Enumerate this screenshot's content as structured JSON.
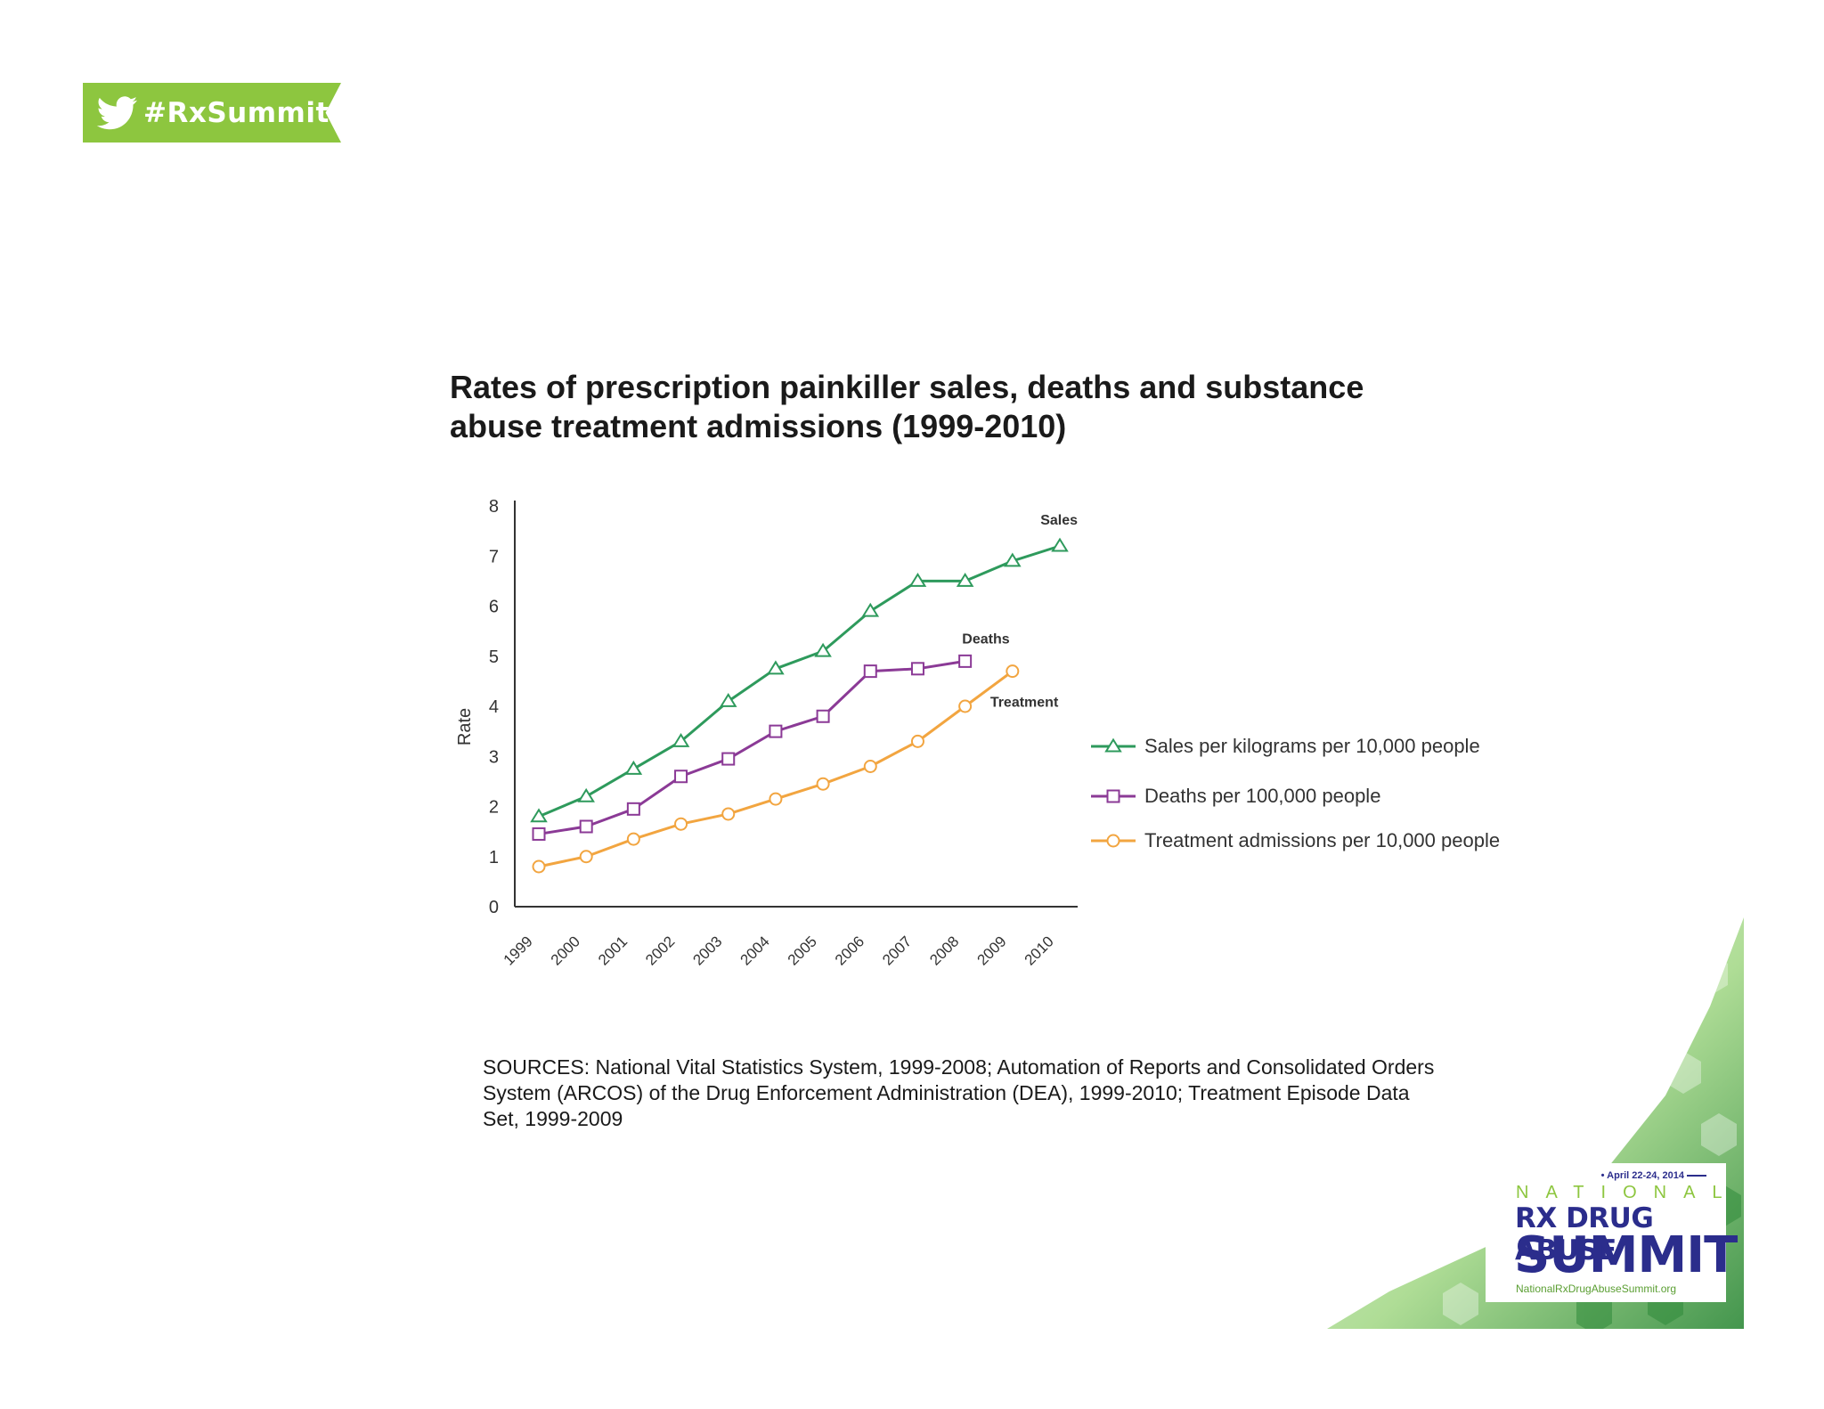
{
  "header": {
    "hashtag": "#RxSummit"
  },
  "logo": {
    "date": "• April 22-24, 2014",
    "national": "NATIONAL",
    "line1": "RX DRUG ABUSE",
    "line2": "SUMMIT",
    "url": "NationalRxDrugAbuseSummit.org"
  },
  "title": "Rates of prescription painkiller sales, deaths and substance abuse treatment admissions (1999-2010)",
  "sources": "SOURCES: National Vital Statistics System, 1999-2008; Automation of Reports and Consolidated Orders System (ARCOS) of the Drug Enforcement Administration (DEA), 1999-2010; Treatment Episode Data Set, 1999-2009",
  "chart_data": {
    "type": "line",
    "title": "Rates of prescription painkiller sales, deaths and substance abuse treatment admissions (1999-2010)",
    "xlabel": "",
    "ylabel": "Rate",
    "ylim": [
      0,
      8
    ],
    "yticks": [
      "0",
      "1",
      "2",
      "3",
      "4",
      "5",
      "6",
      "7",
      "8"
    ],
    "categories": [
      "1999",
      "2000",
      "2001",
      "2002",
      "2003",
      "2004",
      "2005",
      "2006",
      "2007",
      "2008",
      "2009",
      "2010"
    ],
    "grid": false,
    "legend_position": "right",
    "series": [
      {
        "name": "Sales per kilograms per 10,000 people",
        "label": "Sales",
        "marker": "triangle",
        "color": "#2e9a5c",
        "values": [
          1.8,
          2.2,
          2.75,
          3.3,
          4.1,
          4.75,
          5.1,
          5.9,
          6.5,
          6.5,
          6.9,
          7.2
        ]
      },
      {
        "name": "Deaths per 100,000 people",
        "label": "Deaths",
        "marker": "square",
        "color": "#8b3a96",
        "values": [
          1.45,
          1.6,
          1.95,
          2.6,
          2.95,
          3.5,
          3.8,
          4.7,
          4.75,
          4.9,
          null,
          null
        ]
      },
      {
        "name": "Treatment admissions per 10,000 people",
        "label": "Treatment",
        "marker": "circle",
        "color": "#f2a540",
        "values": [
          0.8,
          1.0,
          1.35,
          1.65,
          1.85,
          2.15,
          2.45,
          2.8,
          3.3,
          4.0,
          4.7,
          null
        ]
      }
    ]
  }
}
